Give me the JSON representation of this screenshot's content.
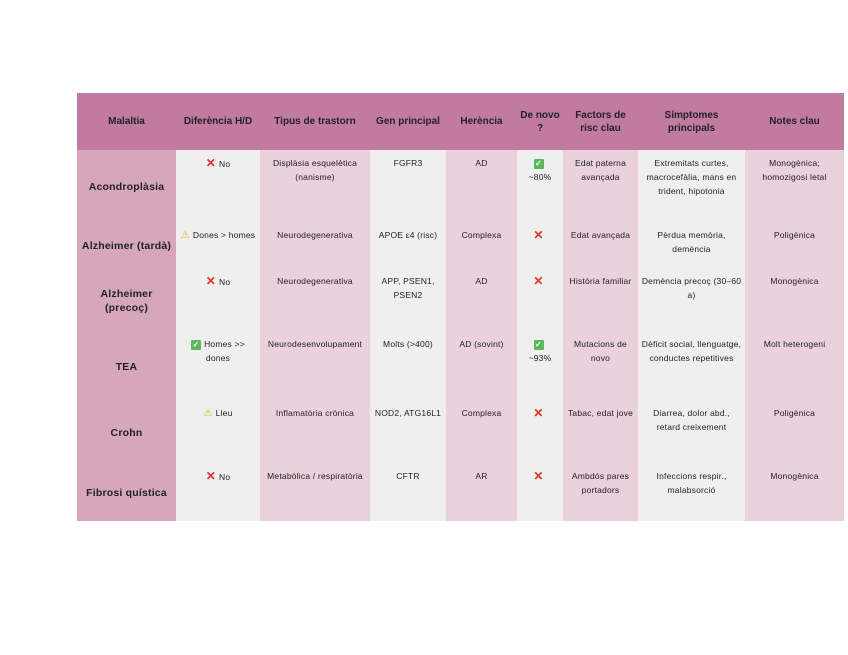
{
  "table": {
    "headers": [
      "Malaltia",
      "Diferència H/D",
      "Tipus de trastorn",
      "Gen principal",
      "Herència",
      "De novo ?",
      "Factors de risc clau",
      "Símptomes principals",
      "Notes clau"
    ],
    "rows": [
      {
        "name": "Acondroplàsia",
        "diff_icon": "cross-icon",
        "diff": "No",
        "type": "Displàsia esquelètica (nanisme)",
        "gene": "FGFR3",
        "inheritance": "AD",
        "denovo_icon": "check-icon",
        "denovo": "~80%",
        "risk": "Edat paterna avançada",
        "symptoms": "Extremitats curtes, macrocefàlia, mans en trident, hipotonia",
        "notes": "Monogènica; homozigosi letal"
      },
      {
        "name": "Alzheimer (tardà)",
        "diff_icon": "warning-icon",
        "diff": "Dones > homes",
        "type": "Neurodegenerativa",
        "gene": "APOE ε4 (risc)",
        "inheritance": "Complexa",
        "denovo_icon": "cross-icon",
        "denovo": "",
        "risk": "Edat avançada",
        "symptoms": "Pèrdua memòria, demència",
        "notes": "Poligènica"
      },
      {
        "name": "Alzheimer (precoç)",
        "diff_icon": "cross-icon",
        "diff": "No",
        "type": "Neurodegenerativa",
        "gene": "APP, PSEN1, PSEN2",
        "inheritance": "AD",
        "denovo_icon": "cross-icon",
        "denovo": "",
        "risk": "Història familiar",
        "symptoms": "Demència precoç (30–60 a)",
        "notes": "Monogènica"
      },
      {
        "name": "TEA",
        "diff_icon": "check-icon",
        "diff": "Homes >> dones",
        "type": "Neurodesenvolupament",
        "gene": "Molts (>400)",
        "inheritance": "AD (sovint)",
        "denovo_icon": "check-icon",
        "denovo": "~93%",
        "risk": "Mutacions de novo",
        "symptoms": "Dèficit social, llenguatge, conductes repetitives",
        "notes": "Molt heterogeni"
      },
      {
        "name": "Crohn",
        "diff_icon": "warning-icon",
        "diff": "Lleu",
        "type": "Inflamatòria crònica",
        "gene": "NOD2, ATG16L1",
        "inheritance": "Complexa",
        "denovo_icon": "cross-icon",
        "denovo": "",
        "risk": "Tabac, edat jove",
        "symptoms": "Diarrea, dolor abd., retard creixement",
        "notes": "Poligènica"
      },
      {
        "name": "Fibrosi quística",
        "diff_icon": "cross-icon",
        "diff": "No",
        "type": "Metabòlica / respiratòria",
        "gene": "CFTR",
        "inheritance": "AR",
        "denovo_icon": "cross-icon",
        "denovo": "",
        "risk": "Ambdós pares portadors",
        "symptoms": "Infeccions respir., malabsorció",
        "notes": "Monogènica"
      }
    ]
  },
  "colors": {
    "header": "#c27ba0",
    "first_column": "#d5a6bd",
    "gray_column": "#efefef",
    "pink_column": "#ead1dc"
  }
}
